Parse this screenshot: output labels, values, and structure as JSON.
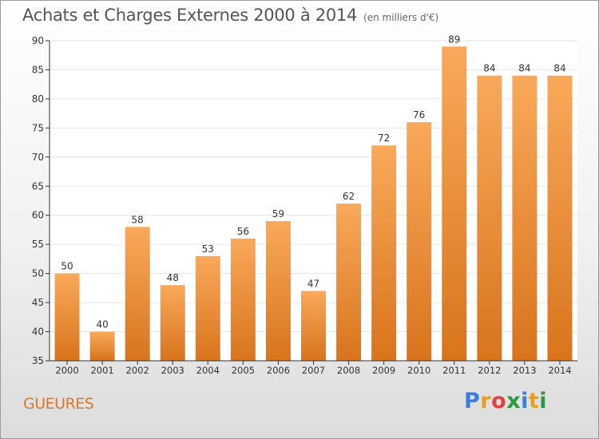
{
  "header": {
    "title": "Achats et Charges Externes 2000 à 2014",
    "unit": "(en milliers d'€)"
  },
  "footer": {
    "commune": "GUEURES",
    "brand": "Proxiti",
    "brand_colors": [
      "#3b7dd8",
      "#e8a020",
      "#e04040",
      "#2a9a3a",
      "#3b7dd8",
      "#e8a020",
      "#2a9a3a"
    ]
  },
  "colors": {
    "bar_top": "#f9a95a",
    "bar_bottom": "#d8741c",
    "commune_text": "#e0762a",
    "grid": "#e6e6e6",
    "axis": "#333333"
  },
  "chart_data": {
    "type": "bar",
    "categories": [
      "2000",
      "2001",
      "2002",
      "2003",
      "2004",
      "2005",
      "2006",
      "2007",
      "2008",
      "2009",
      "2010",
      "2011",
      "2012",
      "2013",
      "2014"
    ],
    "values": [
      50,
      40,
      58,
      48,
      53,
      56,
      59,
      47,
      62,
      72,
      76,
      89,
      84,
      84,
      84
    ],
    "ylim": [
      35,
      90
    ],
    "yticks": [
      35,
      40,
      45,
      50,
      55,
      60,
      65,
      70,
      75,
      80,
      85,
      90
    ],
    "data_labels": true,
    "grid": true,
    "xlabel": "",
    "ylabel": ""
  }
}
